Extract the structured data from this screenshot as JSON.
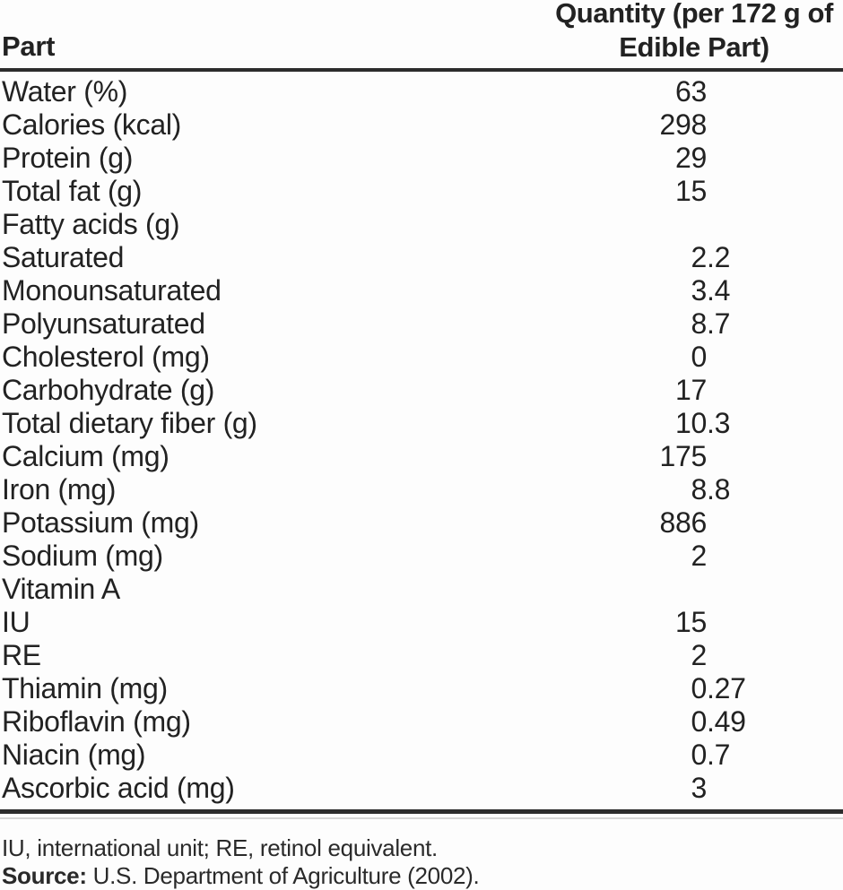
{
  "header": {
    "part": "Part",
    "quantity_line1": "Quantity (per 172 g of",
    "quantity_line2": "Edible Part)"
  },
  "rows": [
    {
      "label": "Water (%)",
      "int": "63",
      "frac": ""
    },
    {
      "label": "Calories (kcal)",
      "int": "298",
      "frac": ""
    },
    {
      "label": "Protein (g)",
      "int": "29",
      "frac": ""
    },
    {
      "label": "Total fat (g)",
      "int": "15",
      "frac": ""
    },
    {
      "label": "Fatty acids (g)",
      "int": "",
      "frac": ""
    },
    {
      "label": "Saturated",
      "int": "2",
      "frac": ".2"
    },
    {
      "label": "Monounsaturated",
      "int": "3",
      "frac": ".4"
    },
    {
      "label": "Polyunsaturated",
      "int": "8",
      "frac": ".7"
    },
    {
      "label": "Cholesterol (mg)",
      "int": "0",
      "frac": ""
    },
    {
      "label": "Carbohydrate (g)",
      "int": "17",
      "frac": ""
    },
    {
      "label": "Total dietary fiber (g)",
      "int": "10",
      "frac": ".3"
    },
    {
      "label": "Calcium (mg)",
      "int": "175",
      "frac": ""
    },
    {
      "label": "Iron (mg)",
      "int": "8",
      "frac": ".8"
    },
    {
      "label": "Potassium (mg)",
      "int": "886",
      "frac": ""
    },
    {
      "label": "Sodium (mg)",
      "int": "2",
      "frac": ""
    },
    {
      "label": "Vitamin A",
      "int": "",
      "frac": ""
    },
    {
      "label": "IU",
      "int": "15",
      "frac": ""
    },
    {
      "label": "RE",
      "int": "2",
      "frac": ""
    },
    {
      "label": "Thiamin (mg)",
      "int": "0",
      "frac": ".27"
    },
    {
      "label": "Riboflavin (mg)",
      "int": "0",
      "frac": ".49"
    },
    {
      "label": "Niacin (mg)",
      "int": "0",
      "frac": ".7"
    },
    {
      "label": "Ascorbic acid (mg)",
      "int": "3",
      "frac": ""
    }
  ],
  "footnotes": {
    "abbreviations": "IU, international unit; RE, retinol equivalent.",
    "source_label": "Source:",
    "source_text": " U.S. Department of Agriculture (2002)."
  },
  "colors": {
    "text": "#222222",
    "rule_dark": "#2c2c2c",
    "rule_light": "#d6d6d6",
    "background": "#fdfdfd"
  }
}
